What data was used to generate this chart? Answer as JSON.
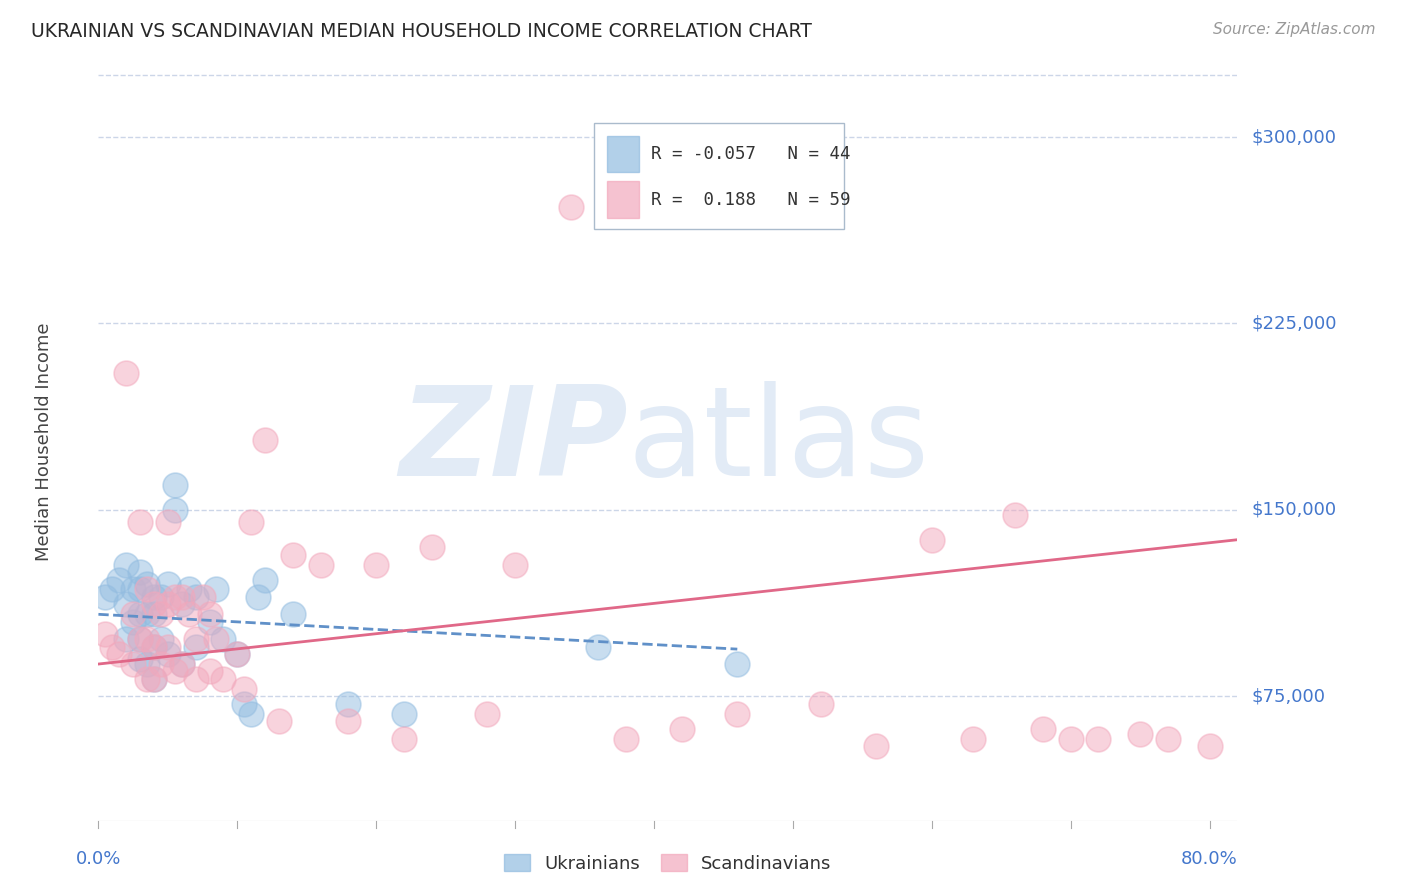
{
  "title": "UKRAINIAN VS SCANDINAVIAN MEDIAN HOUSEHOLD INCOME CORRELATION CHART",
  "source": "Source: ZipAtlas.com",
  "ylabel": "Median Household Income",
  "yticks": [
    75000,
    150000,
    225000,
    300000
  ],
  "ytick_labels": [
    "$75,000",
    "$150,000",
    "$225,000",
    "$300,000"
  ],
  "ylim": [
    25000,
    330000
  ],
  "xlim": [
    0.0,
    0.82
  ],
  "legend_line1": "R = -0.057   N = 44",
  "legend_line2": "R =  0.188   N = 59",
  "ukrainians_color": "#92bce0",
  "scandinavians_color": "#f2a8bc",
  "trend_ukr_color": "#6090c8",
  "trend_scan_color": "#e06888",
  "background_color": "#ffffff",
  "grid_color": "#ccd6e8",
  "title_color": "#282828",
  "ytick_color": "#4477cc",
  "ukrainians_x": [
    0.005,
    0.01,
    0.015,
    0.02,
    0.02,
    0.02,
    0.025,
    0.025,
    0.03,
    0.03,
    0.03,
    0.03,
    0.03,
    0.035,
    0.035,
    0.035,
    0.04,
    0.04,
    0.04,
    0.04,
    0.045,
    0.045,
    0.05,
    0.05,
    0.055,
    0.055,
    0.06,
    0.06,
    0.065,
    0.07,
    0.07,
    0.08,
    0.085,
    0.09,
    0.1,
    0.105,
    0.11,
    0.115,
    0.12,
    0.14,
    0.18,
    0.22,
    0.36,
    0.46
  ],
  "ukrainians_y": [
    115000,
    118000,
    122000,
    128000,
    112000,
    98000,
    118000,
    105000,
    125000,
    118000,
    108000,
    98000,
    90000,
    120000,
    108000,
    88000,
    115000,
    108000,
    95000,
    82000,
    115000,
    98000,
    120000,
    92000,
    160000,
    150000,
    112000,
    88000,
    118000,
    115000,
    95000,
    105000,
    118000,
    98000,
    92000,
    72000,
    68000,
    115000,
    122000,
    108000,
    72000,
    68000,
    95000,
    88000
  ],
  "scandinavians_x": [
    0.005,
    0.01,
    0.015,
    0.02,
    0.025,
    0.025,
    0.03,
    0.03,
    0.035,
    0.035,
    0.035,
    0.04,
    0.04,
    0.04,
    0.045,
    0.045,
    0.05,
    0.05,
    0.05,
    0.055,
    0.055,
    0.06,
    0.06,
    0.065,
    0.07,
    0.07,
    0.075,
    0.08,
    0.08,
    0.085,
    0.09,
    0.1,
    0.105,
    0.11,
    0.12,
    0.13,
    0.14,
    0.16,
    0.18,
    0.2,
    0.22,
    0.24,
    0.28,
    0.3,
    0.34,
    0.38,
    0.42,
    0.46,
    0.52,
    0.56,
    0.6,
    0.63,
    0.66,
    0.68,
    0.7,
    0.72,
    0.75,
    0.77,
    0.8
  ],
  "scandinavians_y": [
    100000,
    95000,
    92000,
    205000,
    108000,
    88000,
    145000,
    98000,
    118000,
    98000,
    82000,
    112000,
    95000,
    82000,
    108000,
    88000,
    145000,
    112000,
    95000,
    115000,
    85000,
    115000,
    88000,
    108000,
    98000,
    82000,
    115000,
    108000,
    85000,
    98000,
    82000,
    92000,
    78000,
    145000,
    178000,
    65000,
    132000,
    128000,
    65000,
    128000,
    58000,
    135000,
    68000,
    128000,
    272000,
    58000,
    62000,
    68000,
    72000,
    55000,
    138000,
    58000,
    148000,
    62000,
    58000,
    58000,
    60000,
    58000,
    55000
  ],
  "trend_ukr_x0": 0.0,
  "trend_ukr_x1": 0.46,
  "trend_ukr_y0": 108000,
  "trend_ukr_y1": 94000,
  "trend_scan_x0": 0.0,
  "trend_scan_x1": 0.82,
  "trend_scan_y0": 88000,
  "trend_scan_y1": 138000
}
